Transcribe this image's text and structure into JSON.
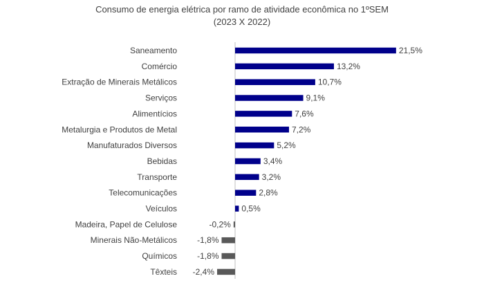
{
  "chart_data": {
    "type": "bar",
    "orientation": "horizontal",
    "title": "Consumo de energia elétrica por ramo de atividade econômica no 1ºSEM",
    "subtitle": "(2023 X 2022)",
    "categories": [
      "Saneamento",
      "Comércio",
      "Extração de Minerais Metálicos",
      "Serviços",
      "Alimentícios",
      "Metalurgia e Produtos de Metal",
      "Manufaturados Diversos",
      "Bebidas",
      "Transporte",
      "Telecomunicações",
      "Veículos",
      "Madeira, Papel de Celulose",
      "Minerais Não-Metálicos",
      "Químicos",
      "Têxteis"
    ],
    "values": [
      21.5,
      13.2,
      10.7,
      9.1,
      7.6,
      7.2,
      5.2,
      3.4,
      3.2,
      2.8,
      0.5,
      -0.2,
      -1.8,
      -1.8,
      -2.4
    ],
    "labels": [
      "21,5%",
      "13,2%",
      "10,7%",
      "9,1%",
      "7,6%",
      "7,2%",
      "5,2%",
      "3,4%",
      "3,2%",
      "2,8%",
      "0,5%",
      "-0,2%",
      "-1,8%",
      "-1,8%",
      "-2,4%"
    ],
    "xlabel": "",
    "ylabel": "",
    "unit": "%",
    "grid": false,
    "colors": {
      "positive": "#00008B",
      "negative": "#595959",
      "axis": "#bfbfbf",
      "text": "#404040"
    }
  }
}
